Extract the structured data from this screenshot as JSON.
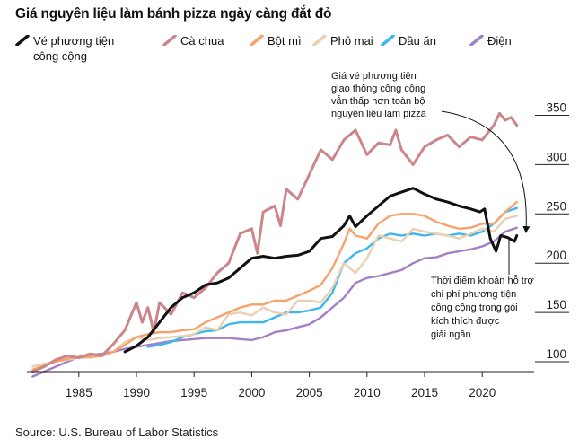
{
  "title": "Giá nguyên liệu làm bánh pizza ngày càng đắt đỏ",
  "source": "Source: U.S. Bureau of Labor Statistics",
  "legend": [
    {
      "label_1": "Vé phương tiện",
      "label_2": "công cộng",
      "color": "#111111"
    },
    {
      "label_1": "Cà chua",
      "color": "#cc8588"
    },
    {
      "label_1": "Bột mì",
      "color": "#f4a46b"
    },
    {
      "label_1": "Phô mai",
      "color": "#ebcfae"
    },
    {
      "label_1": "Dầu ăn",
      "color": "#3cb7ea"
    },
    {
      "label_1": "Điện",
      "color": "#a57fc4"
    }
  ],
  "annotations": {
    "top": [
      "Giá vé phương tiện",
      "giao thông công cộng",
      "vẫn thấp hơn toàn bộ",
      "nguyên liệu làm pizza"
    ],
    "bottom": [
      "Thời điểm khoản hỗ trợ",
      "chi phí phương tiện",
      "công cộng trong gói",
      "kích thích được",
      "giải ngân"
    ]
  },
  "chart_data": {
    "type": "line",
    "title": "Giá nguyên liệu làm bánh pizza ngày càng đắt đỏ",
    "x_ticks": [
      1985,
      1990,
      1995,
      2000,
      2005,
      2010,
      2015,
      2020
    ],
    "y_ticks": [
      100,
      150,
      200,
      250,
      300,
      350
    ],
    "xlim": [
      1980.5,
      2024.5
    ],
    "ylim": [
      90,
      365
    ],
    "grid": false,
    "legend_position": "top",
    "series": [
      {
        "name": "Vé phương tiện công cộng",
        "color": "#111111",
        "width": 3,
        "points": [
          [
            1989,
            110
          ],
          [
            1990,
            116
          ],
          [
            1991,
            125
          ],
          [
            1992,
            140
          ],
          [
            1993,
            155
          ],
          [
            1994,
            165
          ],
          [
            1995,
            170
          ],
          [
            1996,
            178
          ],
          [
            1997,
            180
          ],
          [
            1998,
            185
          ],
          [
            1999,
            195
          ],
          [
            2000,
            205
          ],
          [
            2001,
            207
          ],
          [
            2002,
            205
          ],
          [
            2003,
            207
          ],
          [
            2004,
            208
          ],
          [
            2005,
            212
          ],
          [
            2006,
            225
          ],
          [
            2007,
            227
          ],
          [
            2008,
            238
          ],
          [
            2008.5,
            248
          ],
          [
            2009,
            237
          ],
          [
            2010,
            248
          ],
          [
            2011,
            258
          ],
          [
            2012,
            268
          ],
          [
            2013,
            272
          ],
          [
            2014,
            276
          ],
          [
            2015,
            270
          ],
          [
            2016,
            265
          ],
          [
            2017,
            262
          ],
          [
            2018,
            258
          ],
          [
            2019,
            255
          ],
          [
            2019.8,
            252
          ],
          [
            2020.2,
            255
          ],
          [
            2020.7,
            225
          ],
          [
            2021.2,
            212
          ],
          [
            2021.6,
            228
          ],
          [
            2022.2,
            226
          ],
          [
            2022.8,
            222
          ],
          [
            2023,
            228
          ]
        ]
      },
      {
        "name": "Cà chua",
        "color": "#cc8588",
        "width": 3,
        "points": [
          [
            1981,
            90
          ],
          [
            1982,
            95
          ],
          [
            1983,
            102
          ],
          [
            1984,
            106
          ],
          [
            1985,
            104
          ],
          [
            1986,
            108
          ],
          [
            1987,
            106
          ],
          [
            1988,
            118
          ],
          [
            1989,
            132
          ],
          [
            1990,
            160
          ],
          [
            1990.5,
            140
          ],
          [
            1991,
            155
          ],
          [
            1991.5,
            130
          ],
          [
            1992,
            160
          ],
          [
            1993,
            148
          ],
          [
            1994,
            170
          ],
          [
            1995,
            165
          ],
          [
            1996,
            175
          ],
          [
            1997,
            190
          ],
          [
            1998,
            200
          ],
          [
            1999,
            230
          ],
          [
            2000,
            235
          ],
          [
            2000.5,
            210
          ],
          [
            2001,
            252
          ],
          [
            2002,
            258
          ],
          [
            2002.5,
            238
          ],
          [
            2003,
            275
          ],
          [
            2004,
            265
          ],
          [
            2005,
            290
          ],
          [
            2006,
            315
          ],
          [
            2007,
            305
          ],
          [
            2008,
            325
          ],
          [
            2009,
            335
          ],
          [
            2010,
            310
          ],
          [
            2011,
            322
          ],
          [
            2012,
            320
          ],
          [
            2012.5,
            335
          ],
          [
            2013,
            315
          ],
          [
            2014,
            300
          ],
          [
            2015,
            318
          ],
          [
            2016,
            325
          ],
          [
            2017,
            330
          ],
          [
            2018,
            318
          ],
          [
            2019,
            328
          ],
          [
            2020,
            325
          ],
          [
            2021,
            340
          ],
          [
            2021.5,
            352
          ],
          [
            2022,
            345
          ],
          [
            2022.5,
            348
          ],
          [
            2023,
            340
          ]
        ]
      },
      {
        "name": "Bột mì",
        "color": "#f4a46b",
        "width": 2.4,
        "points": [
          [
            1981,
            92
          ],
          [
            1982,
            96
          ],
          [
            1983,
            100
          ],
          [
            1984,
            103
          ],
          [
            1985,
            105
          ],
          [
            1986,
            105
          ],
          [
            1987,
            106
          ],
          [
            1988,
            110
          ],
          [
            1989,
            117
          ],
          [
            1990,
            125
          ],
          [
            1991,
            128
          ],
          [
            1992,
            130
          ],
          [
            1993,
            130
          ],
          [
            1994,
            132
          ],
          [
            1995,
            133
          ],
          [
            1996,
            140
          ],
          [
            1997,
            145
          ],
          [
            1998,
            150
          ],
          [
            1999,
            155
          ],
          [
            2000,
            158
          ],
          [
            2001,
            158
          ],
          [
            2002,
            162
          ],
          [
            2003,
            162
          ],
          [
            2004,
            167
          ],
          [
            2005,
            172
          ],
          [
            2006,
            178
          ],
          [
            2007,
            195
          ],
          [
            2008,
            220
          ],
          [
            2008.5,
            235
          ],
          [
            2009,
            228
          ],
          [
            2010,
            225
          ],
          [
            2011,
            240
          ],
          [
            2012,
            248
          ],
          [
            2013,
            250
          ],
          [
            2014,
            250
          ],
          [
            2015,
            248
          ],
          [
            2016,
            242
          ],
          [
            2017,
            238
          ],
          [
            2018,
            235
          ],
          [
            2019,
            236
          ],
          [
            2020,
            240
          ],
          [
            2021,
            240
          ],
          [
            2022,
            252
          ],
          [
            2023,
            262
          ]
        ]
      },
      {
        "name": "Phô mai",
        "color": "#ebcfae",
        "width": 2.4,
        "points": [
          [
            1981,
            95
          ],
          [
            1982,
            98
          ],
          [
            1983,
            100
          ],
          [
            1984,
            102
          ],
          [
            1985,
            104
          ],
          [
            1986,
            104
          ],
          [
            1987,
            106
          ],
          [
            1988,
            110
          ],
          [
            1989,
            120
          ],
          [
            1990,
            125
          ],
          [
            1991,
            122
          ],
          [
            1992,
            124
          ],
          [
            1993,
            125
          ],
          [
            1994,
            126
          ],
          [
            1995,
            128
          ],
          [
            1996,
            135
          ],
          [
            1997,
            132
          ],
          [
            1998,
            148
          ],
          [
            1999,
            150
          ],
          [
            2000,
            147
          ],
          [
            2001,
            155
          ],
          [
            2002,
            150
          ],
          [
            2003,
            148
          ],
          [
            2004,
            162
          ],
          [
            2005,
            162
          ],
          [
            2006,
            160
          ],
          [
            2007,
            175
          ],
          [
            2008,
            200
          ],
          [
            2009,
            190
          ],
          [
            2010,
            205
          ],
          [
            2011,
            228
          ],
          [
            2012,
            225
          ],
          [
            2013,
            222
          ],
          [
            2014,
            235
          ],
          [
            2015,
            232
          ],
          [
            2016,
            230
          ],
          [
            2017,
            228
          ],
          [
            2018,
            225
          ],
          [
            2019,
            230
          ],
          [
            2020,
            235
          ],
          [
            2021,
            232
          ],
          [
            2022,
            245
          ],
          [
            2023,
            248
          ]
        ]
      },
      {
        "name": "Dầu ăn",
        "color": "#3cb7ea",
        "width": 2.4,
        "points": [
          [
            1991,
            115
          ],
          [
            1992,
            117
          ],
          [
            1993,
            120
          ],
          [
            1994,
            125
          ],
          [
            1995,
            128
          ],
          [
            1996,
            131
          ],
          [
            1997,
            132
          ],
          [
            1998,
            138
          ],
          [
            1999,
            140
          ],
          [
            2000,
            140
          ],
          [
            2001,
            140
          ],
          [
            2002,
            145
          ],
          [
            2003,
            150
          ],
          [
            2004,
            150
          ],
          [
            2005,
            152
          ],
          [
            2006,
            155
          ],
          [
            2007,
            170
          ],
          [
            2008,
            200
          ],
          [
            2009,
            210
          ],
          [
            2010,
            215
          ],
          [
            2011,
            225
          ],
          [
            2012,
            230
          ],
          [
            2013,
            228
          ],
          [
            2014,
            230
          ],
          [
            2015,
            228
          ],
          [
            2016,
            230
          ],
          [
            2017,
            228
          ],
          [
            2018,
            230
          ],
          [
            2019,
            228
          ],
          [
            2020,
            232
          ],
          [
            2021,
            240
          ],
          [
            2022,
            252
          ],
          [
            2023,
            256
          ]
        ]
      },
      {
        "name": "Điện",
        "color": "#a57fc4",
        "width": 2.4,
        "points": [
          [
            1981,
            85
          ],
          [
            1982,
            90
          ],
          [
            1983,
            95
          ],
          [
            1984,
            100
          ],
          [
            1985,
            105
          ],
          [
            1986,
            107
          ],
          [
            1987,
            108
          ],
          [
            1988,
            110
          ],
          [
            1989,
            113
          ],
          [
            1990,
            115
          ],
          [
            1991,
            117
          ],
          [
            1992,
            119
          ],
          [
            1993,
            121
          ],
          [
            1994,
            122
          ],
          [
            1995,
            123
          ],
          [
            1996,
            124
          ],
          [
            1997,
            124
          ],
          [
            1998,
            124
          ],
          [
            1999,
            123
          ],
          [
            2000,
            122
          ],
          [
            2001,
            125
          ],
          [
            2002,
            130
          ],
          [
            2003,
            132
          ],
          [
            2004,
            135
          ],
          [
            2005,
            138
          ],
          [
            2006,
            145
          ],
          [
            2007,
            155
          ],
          [
            2008,
            165
          ],
          [
            2009,
            180
          ],
          [
            2010,
            185
          ],
          [
            2011,
            187
          ],
          [
            2012,
            190
          ],
          [
            2013,
            193
          ],
          [
            2014,
            200
          ],
          [
            2015,
            205
          ],
          [
            2016,
            206
          ],
          [
            2017,
            210
          ],
          [
            2018,
            212
          ],
          [
            2019,
            214
          ],
          [
            2020,
            217
          ],
          [
            2021,
            222
          ],
          [
            2022,
            232
          ],
          [
            2023,
            236
          ]
        ]
      }
    ]
  }
}
